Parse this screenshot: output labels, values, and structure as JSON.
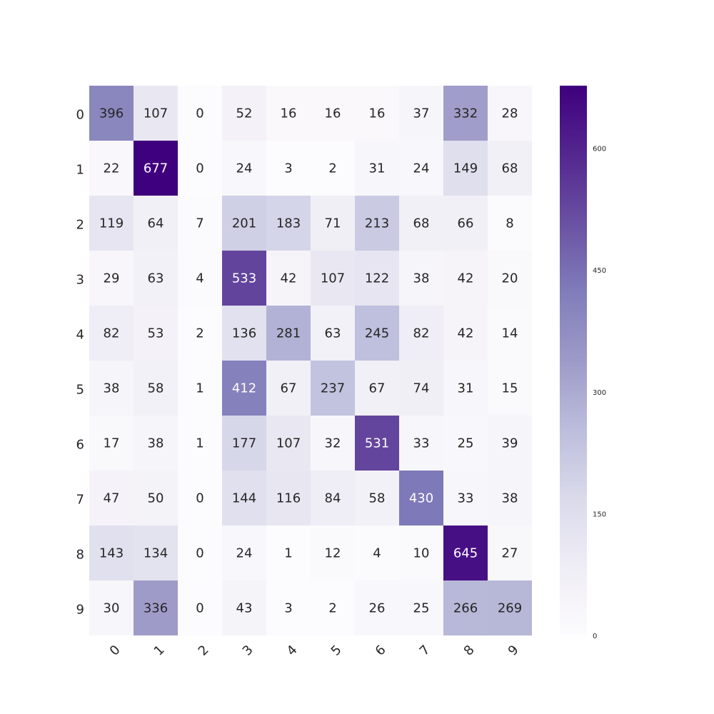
{
  "chart_data": {
    "type": "heatmap",
    "title": "",
    "xlabel": "",
    "ylabel": "",
    "x_categories": [
      "0",
      "1",
      "2",
      "3",
      "4",
      "5",
      "6",
      "7",
      "8",
      "9"
    ],
    "y_categories": [
      "0",
      "1",
      "2",
      "3",
      "4",
      "5",
      "6",
      "7",
      "8",
      "9"
    ],
    "values": [
      [
        396,
        107,
        0,
        52,
        16,
        16,
        16,
        37,
        332,
        28
      ],
      [
        22,
        677,
        0,
        24,
        3,
        2,
        31,
        24,
        149,
        68
      ],
      [
        119,
        64,
        7,
        201,
        183,
        71,
        213,
        68,
        66,
        8
      ],
      [
        29,
        63,
        4,
        533,
        42,
        107,
        122,
        38,
        42,
        20
      ],
      [
        82,
        53,
        2,
        136,
        281,
        63,
        245,
        82,
        42,
        14
      ],
      [
        38,
        58,
        1,
        412,
        67,
        237,
        67,
        74,
        31,
        15
      ],
      [
        17,
        38,
        1,
        177,
        107,
        32,
        531,
        33,
        25,
        39
      ],
      [
        47,
        50,
        0,
        144,
        116,
        84,
        58,
        430,
        33,
        38
      ],
      [
        143,
        134,
        0,
        24,
        1,
        12,
        4,
        10,
        645,
        27
      ],
      [
        30,
        336,
        0,
        43,
        3,
        2,
        26,
        25,
        266,
        269
      ]
    ],
    "colormap": "Purples",
    "colormap_stops": [
      "#fcfbfd",
      "#efedf5",
      "#dadaeb",
      "#bcbddc",
      "#9e9ac8",
      "#807dba",
      "#6a51a3",
      "#54278f",
      "#3f007d"
    ],
    "colorbar": {
      "min": 0,
      "max": 677,
      "ticks": [
        0,
        150,
        300,
        450,
        600
      ]
    },
    "annotations": true,
    "x_tick_rotation": 45,
    "grid": false
  }
}
